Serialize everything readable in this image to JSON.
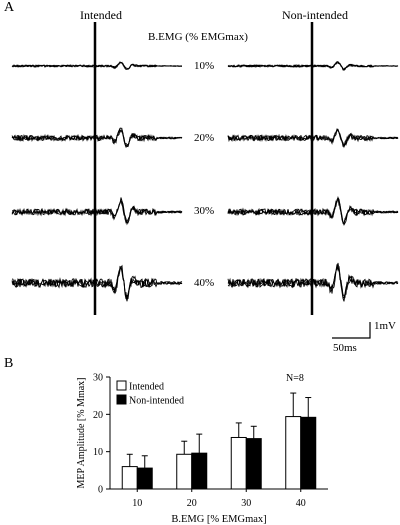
{
  "panel_a": {
    "letter": "A",
    "col_intended": "Intended",
    "col_nonintended": "Non-intended",
    "bemg_header": "B.EMG (% EMGmax)",
    "levels": [
      "10%",
      "20%",
      "30%",
      "40%"
    ],
    "scale_mv": "1mV",
    "scale_ms": "50ms"
  },
  "panel_b": {
    "letter": "B",
    "n_label": "N=8"
  },
  "chart_data": {
    "type": "bar",
    "categories": [
      "10",
      "20",
      "30",
      "40"
    ],
    "series": [
      {
        "name": "Intended",
        "values": [
          6,
          9.3,
          13.8,
          19.4
        ],
        "errors": [
          3.3,
          3.5,
          3.9,
          6.3
        ],
        "color": "#ffffff"
      },
      {
        "name": "Non-intended",
        "values": [
          5.6,
          9.6,
          13.5,
          19.2
        ],
        "errors": [
          3.3,
          5.1,
          3.3,
          5.3
        ],
        "color": "#000000"
      }
    ],
    "xlabel": "B.EMG [% EMGmax]",
    "ylabel": "MEP Amplitude [% Mmax]",
    "ylim": [
      0,
      30
    ],
    "yticks": [
      0,
      10,
      20,
      30
    ],
    "legend_position": "top-left",
    "grid": false
  }
}
